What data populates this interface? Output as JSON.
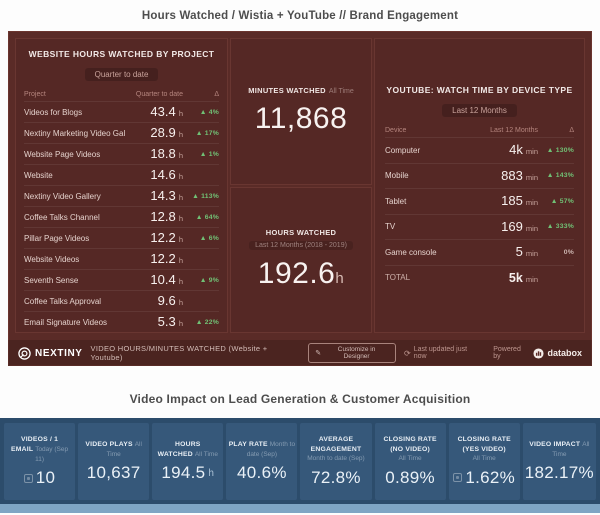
{
  "page": {
    "title1": "Hours Watched / Wistia + YouTube // Brand Engagement",
    "title2": "Video Impact on Lead Generation & Customer Acquisition"
  },
  "colors": {
    "dashboard_red": "#5a2b27",
    "dashboard_blue": "#2c4c6b",
    "tile_blue": "#36587a",
    "delta_green": "#71c175",
    "cutoff_strip_blue": "#7fa5c4"
  },
  "wistia": {
    "left_panel": {
      "title": "WEBSITE HOURS WATCHED BY PROJECT",
      "subtitle": "Quarter to date",
      "columns": [
        "Project",
        "Quarter to date",
        "Δ"
      ],
      "rows": [
        {
          "name": "Videos for Blogs",
          "value": "43.4",
          "suffix": "h",
          "delta": "4%",
          "delta_dir": "up"
        },
        {
          "name": "Nextiny Marketing Video Gallery",
          "value": "28.9",
          "suffix": "h",
          "delta": "17%",
          "delta_dir": "up"
        },
        {
          "name": "Website Page Videos",
          "value": "18.8",
          "suffix": "h",
          "delta": "1%",
          "delta_dir": "up"
        },
        {
          "name": "Website",
          "value": "14.6",
          "suffix": "h",
          "delta": "",
          "delta_dir": "none"
        },
        {
          "name": "Nextiny Video Gallery",
          "value": "14.3",
          "suffix": "h",
          "delta": "113%",
          "delta_dir": "up"
        },
        {
          "name": "Coffee Talks Channel",
          "value": "12.8",
          "suffix": "h",
          "delta": "64%",
          "delta_dir": "up"
        },
        {
          "name": "Pillar Page Videos",
          "value": "12.2",
          "suffix": "h",
          "delta": "6%",
          "delta_dir": "up"
        },
        {
          "name": "Website Videos",
          "value": "12.2",
          "suffix": "h",
          "delta": "",
          "delta_dir": "none"
        },
        {
          "name": "Seventh Sense",
          "value": "10.4",
          "suffix": "h",
          "delta": "9%",
          "delta_dir": "up"
        },
        {
          "name": "Coffee Talks Approval",
          "value": "9.6",
          "suffix": "h",
          "delta": "",
          "delta_dir": "none"
        },
        {
          "name": "Email Signature Videos",
          "value": "5.3",
          "suffix": "h",
          "delta": "22%",
          "delta_dir": "up"
        }
      ]
    },
    "minutes_watched": {
      "title": "MINUTES WATCHED",
      "period": "All Time",
      "value": "11,868"
    },
    "hours_watched": {
      "title": "HOURS WATCHED",
      "period": "Last 12 Months (2018 - 2019)",
      "value": "192.6",
      "suffix": "h"
    },
    "youtube_panel": {
      "title": "YOUTUBE: WATCH TIME BY DEVICE TYPE",
      "subtitle": "Last 12 Months",
      "columns": [
        "Device",
        "Last 12 Months",
        "Δ"
      ],
      "rows": [
        {
          "name": "Computer",
          "value": "4k",
          "suffix": "min",
          "delta": "130%",
          "delta_dir": "up"
        },
        {
          "name": "Mobile",
          "value": "883",
          "suffix": "min",
          "delta": "143%",
          "delta_dir": "up"
        },
        {
          "name": "Tablet",
          "value": "185",
          "suffix": "min",
          "delta": "57%",
          "delta_dir": "up"
        },
        {
          "name": "TV",
          "value": "169",
          "suffix": "min",
          "delta": "333%",
          "delta_dir": "up"
        },
        {
          "name": "Game console",
          "value": "5",
          "suffix": "min",
          "delta": "0%",
          "delta_dir": "flat"
        },
        {
          "name": "TOTAL",
          "value": "5k",
          "suffix": "min",
          "delta": "",
          "delta_dir": "none",
          "is_total": true
        }
      ]
    },
    "footer": {
      "brand": "NEXTINY",
      "label": "VIDEO HOURS/MINUTES WATCHED (Website + Youtube)",
      "customize_button": "Customize in Designer",
      "last_updated": "Last updated just now",
      "powered_by": "Powered by",
      "powered_brand": "databox"
    }
  },
  "impact": {
    "tiles": [
      {
        "title": "VIDEOS / 1 EMAIL",
        "period": "Today (Sep 11)",
        "value": "10",
        "suffix": "",
        "has_icon": true,
        "period_below": false
      },
      {
        "title": "VIDEO PLAYS",
        "period": "All Time",
        "value": "10,637",
        "suffix": "",
        "has_icon": false,
        "period_below": false
      },
      {
        "title": "HOURS WATCHED",
        "period": "All Time",
        "value": "194.5",
        "suffix": "h",
        "has_icon": false,
        "period_below": false
      },
      {
        "title": "PLAY RATE",
        "period": "Month to date (Sep)",
        "value": "40.6%",
        "suffix": "",
        "has_icon": false,
        "period_below": false
      },
      {
        "title": "AVERAGE ENGAGEMENT",
        "period": "Month to date (Sep)",
        "value": "72.8%",
        "suffix": "",
        "has_icon": false,
        "period_below": true
      },
      {
        "title": "CLOSING RATE (NO VIDEO)",
        "period": "All Time",
        "value": "0.89%",
        "suffix": "",
        "has_icon": false,
        "period_below": true
      },
      {
        "title": "CLOSING RATE (YES VIDEO)",
        "period": "All Time",
        "value": "1.62%",
        "suffix": "",
        "has_icon": true,
        "period_below": true
      },
      {
        "title": "VIDEO IMPACT",
        "period": "All Time",
        "value": "182.17%",
        "suffix": "",
        "has_icon": false,
        "period_below": false
      }
    ]
  }
}
